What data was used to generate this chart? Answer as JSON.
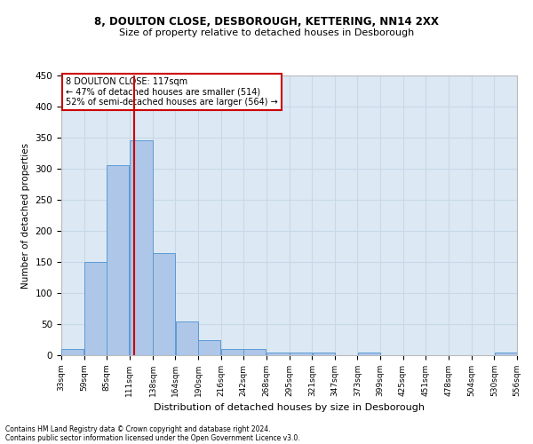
{
  "title1": "8, DOULTON CLOSE, DESBOROUGH, KETTERING, NN14 2XX",
  "title2": "Size of property relative to detached houses in Desborough",
  "xlabel": "Distribution of detached houses by size in Desborough",
  "ylabel": "Number of detached properties",
  "footer1": "Contains HM Land Registry data © Crown copyright and database right 2024.",
  "footer2": "Contains public sector information licensed under the Open Government Licence v3.0.",
  "annotation_line1": "8 DOULTON CLOSE: 117sqm",
  "annotation_line2": "← 47% of detached houses are smaller (514)",
  "annotation_line3": "52% of semi-detached houses are larger (564) →",
  "property_size": 117,
  "bar_left_edges": [
    33,
    59,
    85,
    111,
    138,
    164,
    190,
    216,
    242,
    268,
    295,
    321,
    347,
    373,
    399,
    425,
    451,
    478,
    504,
    530
  ],
  "bar_widths": [
    26,
    26,
    26,
    27,
    26,
    26,
    26,
    26,
    26,
    27,
    26,
    26,
    26,
    26,
    26,
    26,
    27,
    26,
    26,
    26
  ],
  "bar_heights": [
    10,
    150,
    305,
    345,
    165,
    55,
    25,
    10,
    10,
    5,
    5,
    5,
    0,
    5,
    0,
    0,
    0,
    0,
    0,
    5
  ],
  "tick_labels": [
    "33sqm",
    "59sqm",
    "85sqm",
    "111sqm",
    "138sqm",
    "164sqm",
    "190sqm",
    "216sqm",
    "242sqm",
    "268sqm",
    "295sqm",
    "321sqm",
    "347sqm",
    "373sqm",
    "399sqm",
    "425sqm",
    "451sqm",
    "478sqm",
    "504sqm",
    "530sqm",
    "556sqm"
  ],
  "bar_color": "#aec6e8",
  "bar_edge_color": "#5b9bd5",
  "vline_color": "#cc0000",
  "vline_x": 117,
  "annotation_box_color": "#ffffff",
  "annotation_box_edge": "#cc0000",
  "grid_color": "#c8d8e8",
  "bg_color": "#dce9f5",
  "ylim": [
    0,
    450
  ],
  "yticks": [
    0,
    50,
    100,
    150,
    200,
    250,
    300,
    350,
    400,
    450
  ]
}
